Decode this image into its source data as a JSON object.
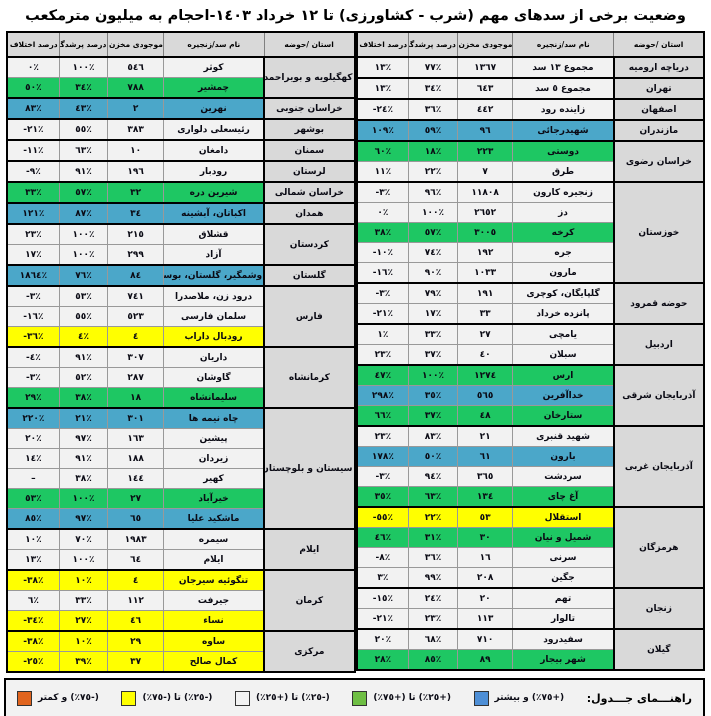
{
  "title": "وضعیت برخی از سدهای مهم (شرب - کشاورزی) تا ١٢ خرداد ١٤٠٣-احجام به میلیون مترمکعب",
  "columns": [
    "استان /حوضه",
    "نام سد/زنجیره",
    "موجودی مخزن",
    "درصد پرشدگی",
    "درصد اختلاف با سال قبل"
  ],
  "colors": {
    "row_blue": "#4BA7C9",
    "row_green": "#1EC763",
    "row_yellow": "#FFFF00",
    "legend_blue": "#4E8FD6",
    "legend_green": "#6FBF44",
    "legend_white": "#F2F2F2",
    "legend_yellow": "#FFFF00",
    "legend_orange": "#E0641E",
    "header_bg": "#D9D9D9",
    "cell_bg": "#F2F2F2"
  },
  "tables": [
    {
      "side": "right",
      "groups": [
        {
          "province": "دریاچه ارومیه",
          "rows": [
            {
              "name": "مجموع ١٣ سد",
              "storage": "١٣٦٧",
              "fill": "٧٧٪",
              "diff": "١٣٪",
              "level": "white"
            }
          ]
        },
        {
          "province": "تهران",
          "rows": [
            {
              "name": "مجموع ٥ سد",
              "storage": "٦٤٣",
              "fill": "٣٤٪",
              "diff": "١٣٪",
              "level": "white"
            }
          ]
        },
        {
          "province": "اصفهان",
          "rows": [
            {
              "name": "زاینده رود",
              "storage": "٤٤٢",
              "fill": "٣٦٪",
              "diff": "-٢٤٪",
              "level": "white"
            }
          ]
        },
        {
          "province": "مازندران",
          "rows": [
            {
              "name": "شهیدرجائی",
              "storage": "٩٦",
              "fill": "٥٩٪",
              "diff": "١٠٩٪",
              "level": "blue"
            }
          ]
        },
        {
          "province": "خراسان رضوی",
          "rows": [
            {
              "name": "دوستی",
              "storage": "٢٢٣",
              "fill": "١٨٪",
              "diff": "٦٠٪",
              "level": "green"
            },
            {
              "name": "طرق",
              "storage": "٧",
              "fill": "٢٢٪",
              "diff": "١١٪",
              "level": "white"
            }
          ]
        },
        {
          "province": "خوزستان",
          "rows": [
            {
              "name": "زنجیره کارون",
              "storage": "١١٨٠٨",
              "fill": "٩٦٪",
              "diff": "-٣٪",
              "level": "white"
            },
            {
              "name": "دز",
              "storage": "٢٦٥٢",
              "fill": "١٠٠٪",
              "diff": "٠٪",
              "level": "white"
            },
            {
              "name": "کرخه",
              "storage": "٣٠٠٥",
              "fill": "٥٧٪",
              "diff": "٣٨٪",
              "level": "green"
            },
            {
              "name": "جره",
              "storage": "١٩٢",
              "fill": "٧٤٪",
              "diff": "-١٠٪",
              "level": "white"
            },
            {
              "name": "مارون",
              "storage": "١٠٣٣",
              "fill": "٩٠٪",
              "diff": "-١٦٪",
              "level": "white"
            }
          ]
        },
        {
          "province": "حوضه قمرود",
          "rows": [
            {
              "name": "گلپایگان، کوچری",
              "storage": "١٩١",
              "fill": "٧٩٪",
              "diff": "-٣٪",
              "level": "white"
            },
            {
              "name": "پانزده خرداد",
              "storage": "٣٣",
              "fill": "١٧٪",
              "diff": "-٢١٪",
              "level": "white"
            }
          ]
        },
        {
          "province": "اردبیل",
          "rows": [
            {
              "name": "یامچی",
              "storage": "٢٧",
              "fill": "٣٣٪",
              "diff": "١٪",
              "level": "white"
            },
            {
              "name": "سبلان",
              "storage": "٤٠",
              "fill": "٣٧٪",
              "diff": "٢٣٪",
              "level": "white"
            }
          ]
        },
        {
          "province": "آذربایجان شرقی",
          "rows": [
            {
              "name": "ارس",
              "storage": "١٢٧٤",
              "fill": "١٠٠٪",
              "diff": "٤٧٪",
              "level": "green"
            },
            {
              "name": "خداآفرین",
              "storage": "٥٦٥",
              "fill": "٣٥٪",
              "diff": "٢٩٨٪",
              "level": "blue"
            },
            {
              "name": "ستارخان",
              "storage": "٤٨",
              "fill": "٣٧٪",
              "diff": "٦٦٪",
              "level": "green"
            }
          ]
        },
        {
          "province": "آذربایجان غربی",
          "rows": [
            {
              "name": "شهید قنبری",
              "storage": "٢١",
              "fill": "٨٣٪",
              "diff": "٢٣٪",
              "level": "white"
            },
            {
              "name": "بارون",
              "storage": "٦١",
              "fill": "٥٠٪",
              "diff": "١٧٨٪",
              "level": "blue"
            },
            {
              "name": "سردشت",
              "storage": "٣٦٥",
              "fill": "٩٤٪",
              "diff": "-٣٪",
              "level": "white"
            },
            {
              "name": "آغ چای",
              "storage": "١٣٤",
              "fill": "٦٣٪",
              "diff": "٣٥٪",
              "level": "green"
            }
          ]
        },
        {
          "province": "هرمزگان",
          "rows": [
            {
              "name": "استقلال",
              "storage": "٥٣",
              "fill": "٢٢٪",
              "diff": "-٥٥٪",
              "level": "yellow"
            },
            {
              "name": "شمیل و نیان",
              "storage": "٣٠",
              "fill": "٣١٪",
              "diff": "٤٦٪",
              "level": "green"
            },
            {
              "name": "سرنی",
              "storage": "١٦",
              "fill": "٣٦٪",
              "diff": "-٨٪",
              "level": "white"
            },
            {
              "name": "جگین",
              "storage": "٢٠٨",
              "fill": "٩٩٪",
              "diff": "٣٪",
              "level": "white"
            }
          ]
        },
        {
          "province": "زنجان",
          "rows": [
            {
              "name": "تهم",
              "storage": "٢٠",
              "fill": "٢٤٪",
              "diff": "-١٥٪",
              "level": "white"
            },
            {
              "name": "تالوار",
              "storage": "١١٣",
              "fill": "٢٣٪",
              "diff": "-٢١٪",
              "level": "white"
            }
          ]
        },
        {
          "province": "گیلان",
          "rows": [
            {
              "name": "سفیدرود",
              "storage": "٧١٠",
              "fill": "٦٨٪",
              "diff": "٢٠٪",
              "level": "white"
            },
            {
              "name": "شهر بیجار",
              "storage": "٨٩",
              "fill": "٨٥٪",
              "diff": "٢٨٪",
              "level": "green"
            }
          ]
        }
      ]
    },
    {
      "side": "left",
      "groups": [
        {
          "province": "کهگیلویه و بویراحمد",
          "rows": [
            {
              "name": "کوثر",
              "storage": "٥٤٦",
              "fill": "١٠٠٪",
              "diff": "٠٪",
              "level": "white"
            },
            {
              "name": "چمشیر",
              "storage": "٧٨٨",
              "fill": "٣٤٪",
              "diff": "٥٠٪",
              "level": "green"
            }
          ]
        },
        {
          "province": "خراسان جنوبی",
          "rows": [
            {
              "name": "نهرین",
              "storage": "٢",
              "fill": "٤٣٪",
              "diff": "٨٣٪",
              "level": "blue"
            }
          ]
        },
        {
          "province": "بوشهر",
          "rows": [
            {
              "name": "رئیسعلی دلواری",
              "storage": "٣٨٣",
              "fill": "٥٥٪",
              "diff": "-٢١٪",
              "level": "white"
            }
          ]
        },
        {
          "province": "سمنان",
          "rows": [
            {
              "name": "دامغان",
              "storage": "١٠",
              "fill": "٦٣٪",
              "diff": "-١١٪",
              "level": "white"
            }
          ]
        },
        {
          "province": "لرستان",
          "rows": [
            {
              "name": "رودبار",
              "storage": "١٩٦",
              "fill": "٩١٪",
              "diff": "-٩٪",
              "level": "white"
            }
          ]
        },
        {
          "province": "خراسان شمالی",
          "rows": [
            {
              "name": "شیرین دره",
              "storage": "٣٢",
              "fill": "٥٧٪",
              "diff": "٣٣٪",
              "level": "green"
            }
          ]
        },
        {
          "province": "همدان",
          "rows": [
            {
              "name": "اکباتان، آبشینه",
              "storage": "٣٤",
              "fill": "٨٧٪",
              "diff": "١٢١٪",
              "level": "blue"
            }
          ]
        },
        {
          "province": "کردستان",
          "rows": [
            {
              "name": "قشلاق",
              "storage": "٢١٥",
              "fill": "١٠٠٪",
              "diff": "٢٣٪",
              "level": "white"
            },
            {
              "name": "آزاد",
              "storage": "٢٩٩",
              "fill": "١٠٠٪",
              "diff": "١٧٪",
              "level": "white"
            }
          ]
        },
        {
          "province": "گلستان",
          "rows": [
            {
              "name": "وشمگیر، گلستان، بوستان",
              "storage": "٨٤",
              "fill": "٧٦٪",
              "diff": "١٨٦٤٪",
              "level": "blue"
            }
          ]
        },
        {
          "province": "فارس",
          "rows": [
            {
              "name": "درود زن، ملاصدرا",
              "storage": "٧٤١",
              "fill": "٥٣٪",
              "diff": "-٣٪",
              "level": "white"
            },
            {
              "name": "سلمان فارسی",
              "storage": "٥٢٣",
              "fill": "٥٥٪",
              "diff": "-١٦٪",
              "level": "white"
            },
            {
              "name": "رودبال داراب",
              "storage": "٤",
              "fill": "٤٪",
              "diff": "-٣٦٪",
              "level": "yellow"
            }
          ]
        },
        {
          "province": "کرمانشاه",
          "rows": [
            {
              "name": "داریان",
              "storage": "٣٠٧",
              "fill": "٩١٪",
              "diff": "-٤٪",
              "level": "white"
            },
            {
              "name": "گاوشان",
              "storage": "٢٨٧",
              "fill": "٥٢٪",
              "diff": "-٣٪",
              "level": "white"
            },
            {
              "name": "سلیمانشاه",
              "storage": "١٨",
              "fill": "٣٨٪",
              "diff": "٢٩٪",
              "level": "green"
            }
          ]
        },
        {
          "province": "سیستان و بلوچستان",
          "rows": [
            {
              "name": "چاه نیمه ها",
              "storage": "٣٠١",
              "fill": "٢١٪",
              "diff": "٢٢٠٪",
              "level": "blue"
            },
            {
              "name": "پیشین",
              "storage": "١٦٣",
              "fill": "٩٧٪",
              "diff": "٢٠٪",
              "level": "white"
            },
            {
              "name": "زیردان",
              "storage": "١٨٨",
              "fill": "٩١٪",
              "diff": "١٤٪",
              "level": "white"
            },
            {
              "name": "کهیر",
              "storage": "١٤٤",
              "fill": "٣٨٪",
              "diff": "–",
              "level": "white"
            },
            {
              "name": "خیرآباد",
              "storage": "٢٧",
              "fill": "١٠٠٪",
              "diff": "٥٣٪",
              "level": "green"
            },
            {
              "name": "ماشکید علیا",
              "storage": "٦٥",
              "fill": "٩٧٪",
              "diff": "٨٥٪",
              "level": "blue"
            }
          ]
        },
        {
          "province": "ایلام",
          "rows": [
            {
              "name": "سیمره",
              "storage": "١٩٨٣",
              "fill": "٧٠٪",
              "diff": "١٠٪",
              "level": "white"
            },
            {
              "name": "ایلام",
              "storage": "٦٤",
              "fill": "١٠٠٪",
              "diff": "١٣٪",
              "level": "white"
            }
          ]
        },
        {
          "province": "کرمان",
          "rows": [
            {
              "name": "تنگوئیه سیرجان",
              "storage": "٤",
              "fill": "١٠٪",
              "diff": "-٣٨٪",
              "level": "yellow"
            },
            {
              "name": "جیرفت",
              "storage": "١١٢",
              "fill": "٣٣٪",
              "diff": "٦٪",
              "level": "white"
            },
            {
              "name": "نساء",
              "storage": "٤٦",
              "fill": "٢٧٪",
              "diff": "-٣٤٪",
              "level": "yellow"
            }
          ]
        },
        {
          "province": "مرکزی",
          "rows": [
            {
              "name": "ساوه",
              "storage": "٢٩",
              "fill": "١٠٪",
              "diff": "-٣٨٪",
              "level": "yellow"
            },
            {
              "name": "کمال صالح",
              "storage": "٣٧",
              "fill": "٣٩٪",
              "diff": "-٢٥٪",
              "level": "yellow"
            }
          ]
        }
      ]
    }
  ],
  "legend": {
    "label": "راهنـــمای جـــدول:",
    "items": [
      {
        "key": "blue",
        "color": "#4E8FD6",
        "label": "(+٧٥٪) و بیشتر"
      },
      {
        "key": "green",
        "color": "#6FBF44",
        "label": "(+٢٥٪) تا (+٧٥٪)"
      },
      {
        "key": "white",
        "color": "#F2F2F2",
        "label": "(-٢٥٪) تا (+٢٥٪)"
      },
      {
        "key": "yellow",
        "color": "#FFFF00",
        "label": "(-٢٥٪) تا (-٧٥٪)"
      },
      {
        "key": "orange",
        "color": "#E0641E",
        "label": "(-٧٥٪) و کمتر"
      }
    ]
  }
}
